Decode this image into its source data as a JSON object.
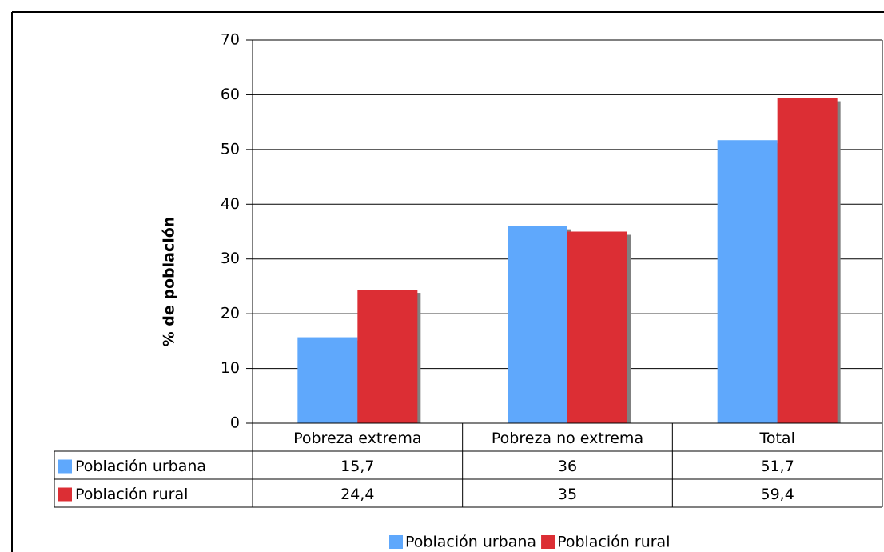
{
  "chart_data": {
    "type": "bar",
    "categories": [
      "Pobreza extrema",
      "Pobreza no extrema",
      "Total"
    ],
    "series": [
      {
        "name": "Población urbana",
        "color": "#5fa8fc",
        "values": [
          15.7,
          36,
          51.7
        ],
        "value_labels": [
          "15,7",
          "36",
          "51,7"
        ]
      },
      {
        "name": "Población rural",
        "color": "#dc2e34",
        "values": [
          24.4,
          35,
          59.4
        ],
        "value_labels": [
          "24,4",
          "35",
          "59,4"
        ]
      }
    ],
    "y_label": "% de población",
    "ylim": [
      0,
      70
    ],
    "yticks": [
      0,
      10,
      20,
      30,
      40,
      50,
      60,
      70
    ],
    "grid": true,
    "legend": "bottom",
    "data_table": true
  }
}
